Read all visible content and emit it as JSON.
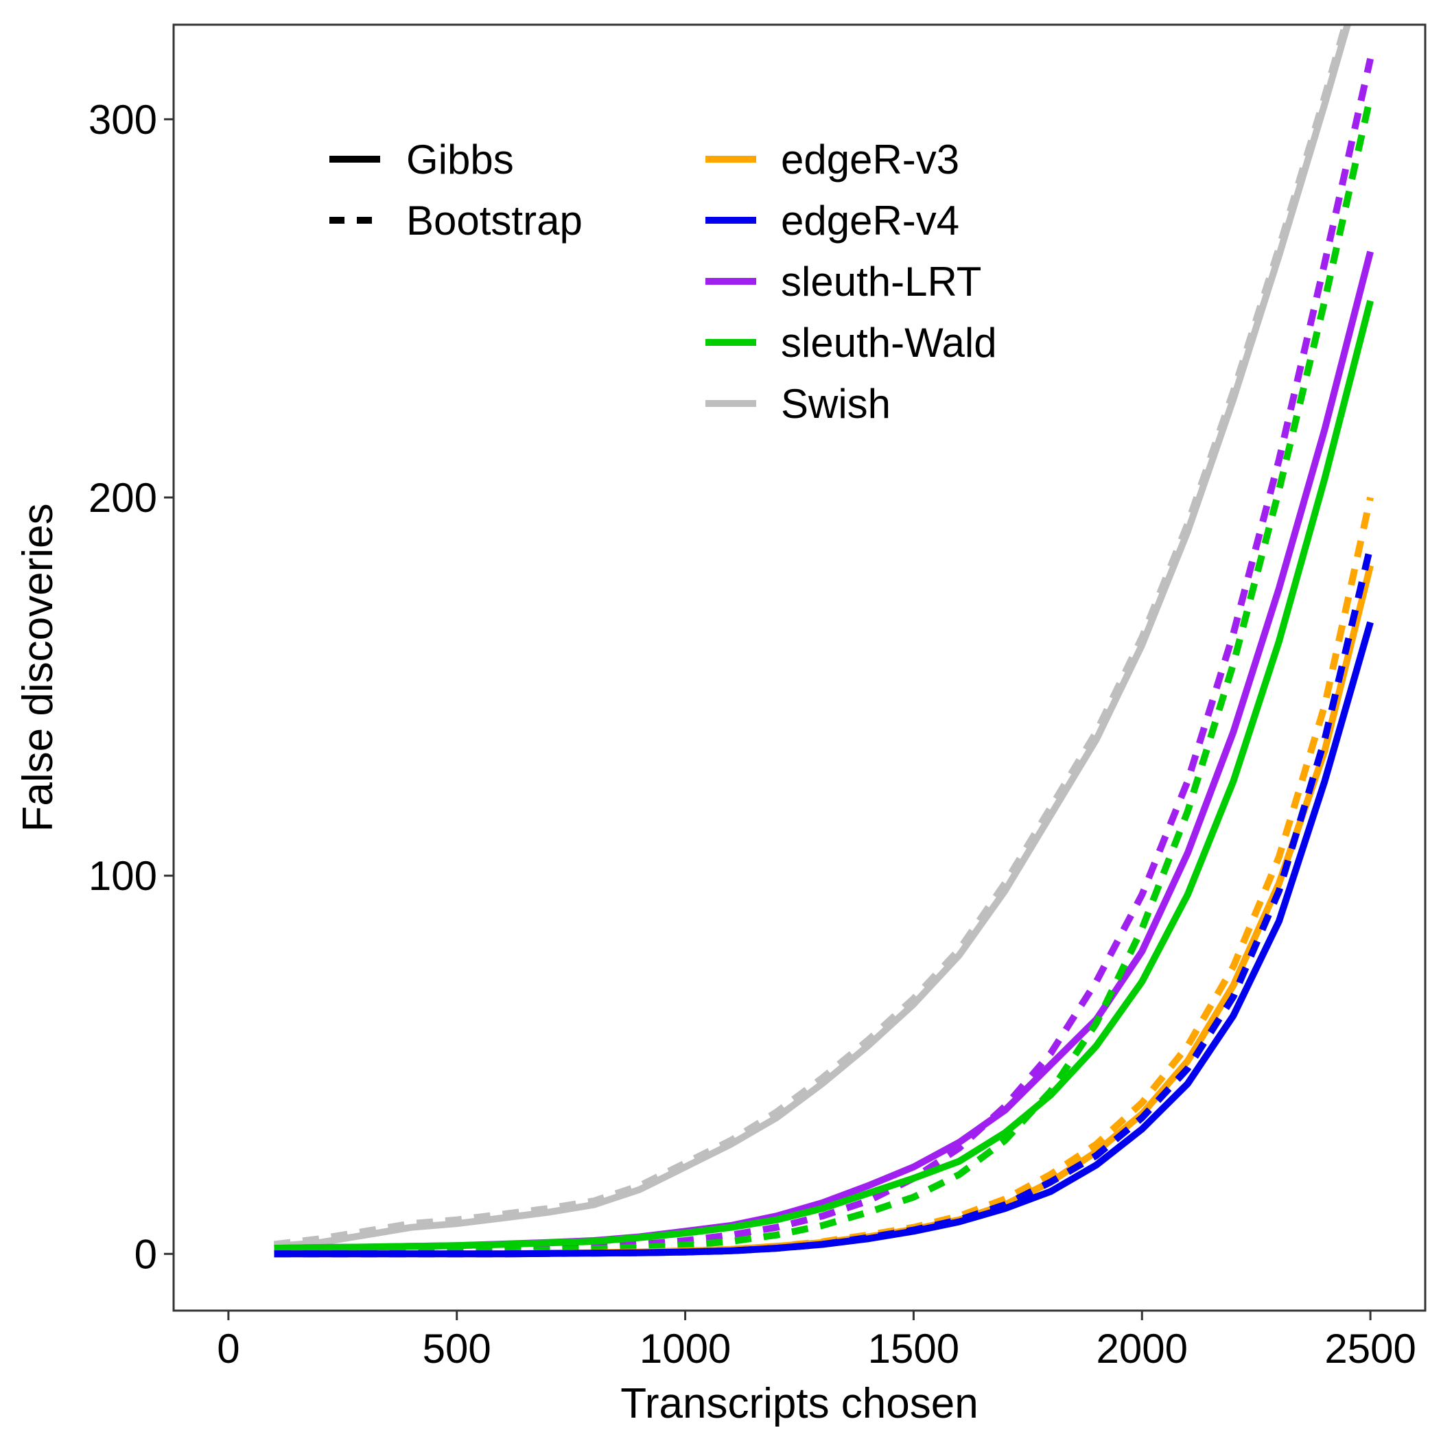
{
  "chart_data": {
    "type": "line",
    "title": "",
    "xlabel": "Transcripts chosen",
    "ylabel": "False discoveries",
    "xlim": [
      -120,
      2620
    ],
    "ylim": [
      -15,
      325
    ],
    "xticks": [
      0,
      500,
      1000,
      1500,
      2000,
      2500
    ],
    "xtick_labels": [
      "0",
      "500",
      "1000",
      "1500",
      "2000",
      "2500"
    ],
    "yticks": [
      0,
      100,
      200,
      300
    ],
    "ytick_labels": [
      "0",
      "100",
      "200",
      "300"
    ],
    "grid": false,
    "legend_position": "top-left inside",
    "linetype_legend": [
      {
        "label": "Gibbs",
        "dash": "solid"
      },
      {
        "label": "Bootstrap",
        "dash": "dashed"
      }
    ],
    "color_legend": [
      {
        "label": "edgeR-v3",
        "color": "#FFA500"
      },
      {
        "label": "edgeR-v4",
        "color": "#0000EE"
      },
      {
        "label": "sleuth-LRT",
        "color": "#A020F0"
      },
      {
        "label": "sleuth-Wald",
        "color": "#00CD00"
      },
      {
        "label": "Swish",
        "color": "#BEBEBE"
      }
    ],
    "x": [
      100,
      200,
      300,
      400,
      500,
      600,
      700,
      800,
      900,
      1000,
      1100,
      1200,
      1300,
      1400,
      1500,
      1600,
      1700,
      1800,
      1900,
      2000,
      2100,
      2200,
      2300,
      2400,
      2500
    ],
    "series": [
      {
        "method": "Swish",
        "type": "Gibbs",
        "color": "#BEBEBE",
        "dash": "solid",
        "values": [
          2,
          3,
          5,
          7,
          8,
          9.5,
          11,
          13,
          17,
          23,
          29,
          36,
          45,
          55,
          66,
          79,
          96,
          116,
          136,
          161,
          191,
          226,
          264,
          304,
          346
        ]
      },
      {
        "method": "Swish",
        "type": "Bootstrap",
        "color": "#BEBEBE",
        "dash": "dashed",
        "values": [
          2.5,
          4,
          6,
          8,
          9,
          10.5,
          12,
          14,
          18,
          24,
          30,
          37.5,
          46.5,
          56.5,
          67.5,
          80.5,
          98,
          118,
          138,
          163,
          193,
          228,
          266,
          306,
          348
        ]
      },
      {
        "method": "sleuth-LRT",
        "type": "Gibbs",
        "color": "#A020F0",
        "dash": "solid",
        "values": [
          1.5,
          1.7,
          1.8,
          2,
          2.2,
          2.6,
          3,
          3.5,
          4.5,
          6,
          7.5,
          10,
          13.5,
          18,
          23,
          29.5,
          38,
          50,
          62,
          80,
          106,
          138,
          176,
          218,
          265
        ]
      },
      {
        "method": "sleuth-LRT",
        "type": "Bootstrap",
        "color": "#A020F0",
        "dash": "dashed",
        "values": [
          0.4,
          0.5,
          0.6,
          0.7,
          0.9,
          1.1,
          1.4,
          1.8,
          2.5,
          3.5,
          5,
          7,
          10,
          14,
          20,
          28,
          39,
          53,
          72,
          95,
          125,
          164,
          210,
          262,
          316
        ]
      },
      {
        "method": "sleuth-Wald",
        "type": "Gibbs",
        "color": "#00CD00",
        "dash": "solid",
        "values": [
          1.5,
          1.7,
          1.8,
          2,
          2.2,
          2.5,
          2.9,
          3.3,
          4.3,
          5.5,
          7,
          9,
          12,
          16,
          20,
          24.5,
          32,
          42,
          55,
          72,
          95,
          125,
          162,
          205,
          252
        ]
      },
      {
        "method": "sleuth-Wald",
        "type": "Bootstrap",
        "color": "#00CD00",
        "dash": "dashed",
        "values": [
          0.3,
          0.4,
          0.5,
          0.6,
          0.7,
          0.8,
          1,
          1.3,
          1.7,
          2.3,
          3.3,
          5,
          7.5,
          11,
          15,
          21,
          30,
          43,
          61,
          86,
          117,
          156,
          202,
          252,
          306
        ]
      },
      {
        "method": "edgeR-v3",
        "type": "Gibbs",
        "color": "#FFA500",
        "dash": "solid",
        "values": [
          0,
          0,
          0,
          0,
          0,
          0,
          0.2,
          0.3,
          0.5,
          0.8,
          1.2,
          2,
          3,
          4.5,
          6.5,
          9,
          13,
          19,
          27,
          37,
          51,
          71,
          98,
          133,
          182
        ]
      },
      {
        "method": "edgeR-v3",
        "type": "Bootstrap",
        "color": "#FFA500",
        "dash": "dashed",
        "values": [
          0,
          0,
          0,
          0,
          0,
          0,
          0.2,
          0.3,
          0.5,
          0.8,
          1.2,
          2,
          3.2,
          5,
          7,
          10,
          14.5,
          21,
          29,
          40,
          55,
          76,
          105,
          145,
          200
        ]
      },
      {
        "method": "edgeR-v4",
        "type": "Gibbs",
        "color": "#0000EE",
        "dash": "solid",
        "values": [
          0,
          0,
          0,
          0,
          0,
          0,
          0.1,
          0.2,
          0.3,
          0.5,
          0.8,
          1.5,
          2.5,
          4,
          6,
          8.5,
          12,
          16.5,
          23.5,
          33,
          45,
          63,
          88,
          125,
          167
        ]
      },
      {
        "method": "edgeR-v4",
        "type": "Bootstrap",
        "color": "#0000EE",
        "dash": "dashed",
        "values": [
          0,
          0,
          0,
          0,
          0,
          0,
          0.1,
          0.2,
          0.3,
          0.5,
          0.8,
          1.5,
          2.5,
          4.3,
          6.3,
          9,
          13,
          19,
          26,
          36,
          49,
          68,
          96,
          136,
          187
        ]
      }
    ]
  }
}
